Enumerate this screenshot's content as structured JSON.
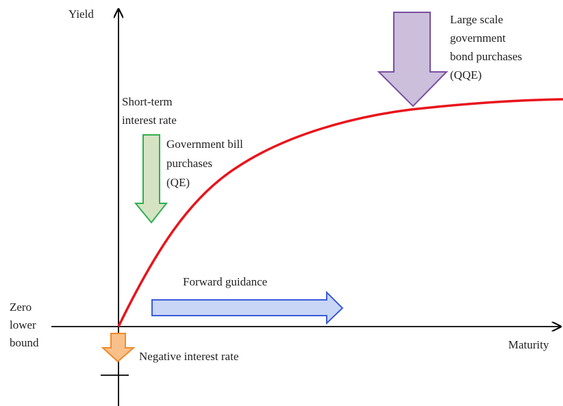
{
  "axes": {
    "y_label": "Yield",
    "x_label": "Maturity"
  },
  "labels": {
    "qqe": [
      "Large scale",
      "government",
      "bond purchases",
      "(QQE)"
    ],
    "short_term": [
      "Short-term",
      "interest rate"
    ],
    "qe": [
      "Government bill",
      "purchases",
      "(QE)"
    ],
    "forward": "Forward guidance",
    "zero_bound": [
      "Zero",
      "lower",
      "bound"
    ],
    "negative": "Negative interest rate"
  }
}
